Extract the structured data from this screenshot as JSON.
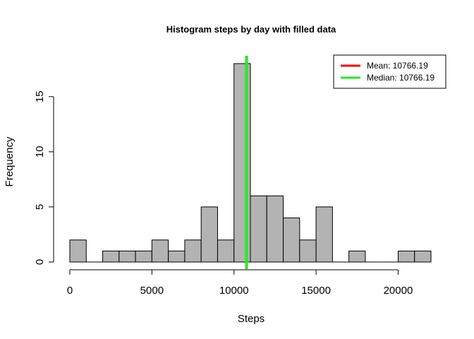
{
  "chart_data": {
    "type": "bar",
    "title": "Histogram steps by day with filled data",
    "xlabel": "Steps",
    "ylabel": "Frequency",
    "bin_width": 1000,
    "bin_starts": [
      0,
      1000,
      2000,
      3000,
      4000,
      5000,
      6000,
      7000,
      8000,
      9000,
      10000,
      11000,
      12000,
      13000,
      14000,
      15000,
      16000,
      17000,
      18000,
      19000,
      20000,
      21000
    ],
    "values": [
      2,
      0,
      1,
      1,
      1,
      2,
      1,
      2,
      5,
      2,
      18,
      6,
      6,
      4,
      2,
      5,
      0,
      1,
      0,
      0,
      1,
      1
    ],
    "xlim": [
      0,
      22000
    ],
    "ylim": [
      0,
      18
    ],
    "x_ticks": [
      "0",
      "5000",
      "10000",
      "15000",
      "20000"
    ],
    "x_tick_values": [
      0,
      5000,
      10000,
      15000,
      20000
    ],
    "y_ticks": [
      "0",
      "5",
      "10",
      "15"
    ],
    "y_tick_values": [
      0,
      5,
      10,
      15
    ],
    "bar_color": "#b3b3b3",
    "grid": false,
    "legend_position": "top-right",
    "vlines": [
      {
        "label": "Mean:  10766.19",
        "value": 10766.19,
        "color": "#ff0000"
      },
      {
        "label": "Median:  10766.19",
        "value": 10766.19,
        "color": "#22ee22"
      }
    ]
  }
}
